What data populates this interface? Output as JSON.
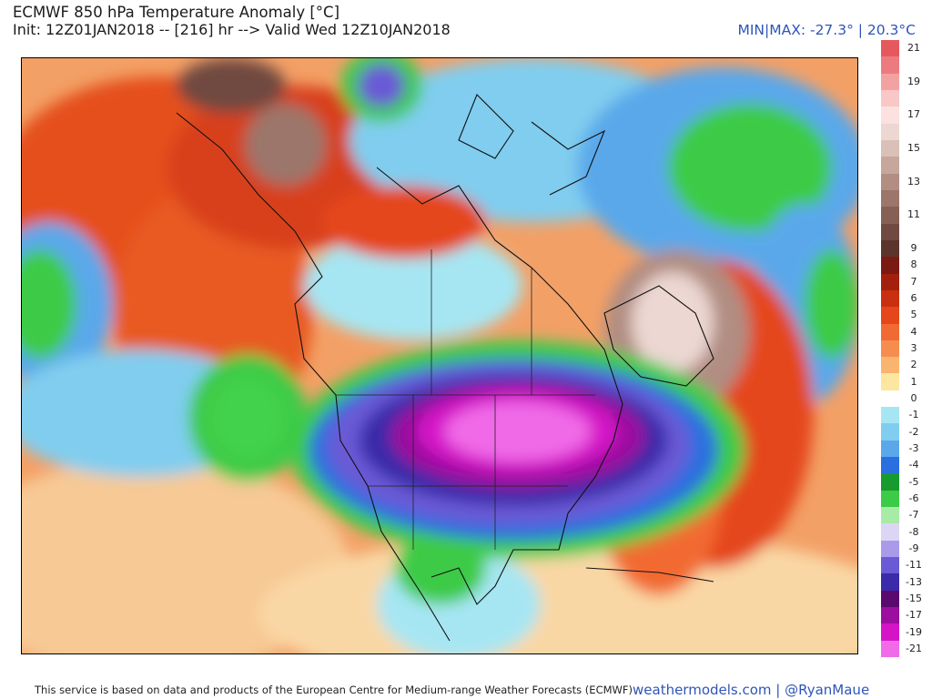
{
  "header": {
    "title": "ECMWF 850 hPa Temperature Anomaly [°C]",
    "subtitle": "Init: 12Z01JAN2018 -- [216] hr --> Valid Wed 12Z10JAN2018",
    "minmax": "MIN|MAX: -27.3° | 20.3°C"
  },
  "legend": {
    "entries": [
      {
        "label": "21",
        "color": "#e5595e"
      },
      {
        "label": "",
        "color": "#ec7b7f"
      },
      {
        "label": "19",
        "color": "#f3a2a2"
      },
      {
        "label": "",
        "color": "#f8c7c6"
      },
      {
        "label": "17",
        "color": "#fbe1df"
      },
      {
        "label": "",
        "color": "#ecd7d2"
      },
      {
        "label": "15",
        "color": "#d9c0b8"
      },
      {
        "label": "",
        "color": "#c7a69c"
      },
      {
        "label": "13",
        "color": "#b18d82"
      },
      {
        "label": "",
        "color": "#9c766a"
      },
      {
        "label": "11",
        "color": "#866055"
      },
      {
        "label": "",
        "color": "#704a40"
      },
      {
        "label": "9",
        "color": "#5b352c"
      },
      {
        "label": "8",
        "color": "#7a1b13"
      },
      {
        "label": "7",
        "color": "#a3200f"
      },
      {
        "label": "6",
        "color": "#c8300f"
      },
      {
        "label": "5",
        "color": "#e5461b"
      },
      {
        "label": "4",
        "color": "#f26a33"
      },
      {
        "label": "3",
        "color": "#f68d4e"
      },
      {
        "label": "2",
        "color": "#f9b46f"
      },
      {
        "label": "1",
        "color": "#fde7a0"
      },
      {
        "label": "0",
        "color": "#ffffff"
      },
      {
        "label": "-1",
        "color": "#a6e6f3"
      },
      {
        "label": "-2",
        "color": "#80cdef"
      },
      {
        "label": "-3",
        "color": "#5aa8ea"
      },
      {
        "label": "-4",
        "color": "#2a6fe0"
      },
      {
        "label": "-5",
        "color": "#179b2e"
      },
      {
        "label": "-6",
        "color": "#3ccb47"
      },
      {
        "label": "-7",
        "color": "#a7eba6"
      },
      {
        "label": "-8",
        "color": "#dcd6f4"
      },
      {
        "label": "-9",
        "color": "#a99be9"
      },
      {
        "label": "-11",
        "color": "#6a5ad6"
      },
      {
        "label": "-13",
        "color": "#3b2aa9"
      },
      {
        "label": "-15",
        "color": "#5a0a6e"
      },
      {
        "label": "-17",
        "color": "#9b0e9f"
      },
      {
        "label": "-19",
        "color": "#d514c8"
      },
      {
        "label": "-21",
        "color": "#f06be8"
      }
    ]
  },
  "footer": {
    "credit": "This service is based on data and products of the European Centre for Medium-range Weather Forecasts (ECMWF)",
    "site": "weathermodels.com | @RyanMaue"
  }
}
